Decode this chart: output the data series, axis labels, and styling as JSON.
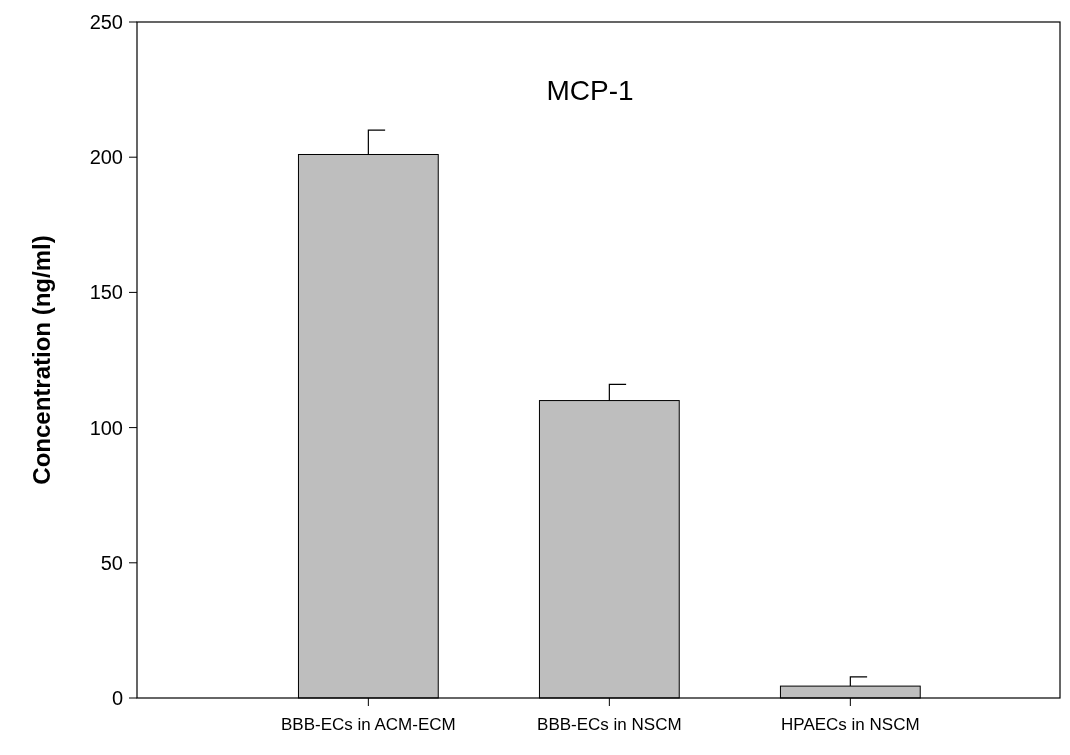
{
  "chart_data": {
    "type": "bar",
    "title": "MCP-1",
    "ylabel": "Concentration (ng/ml)",
    "categories": [
      "BBB-ECs in ACM-ECM",
      "BBB-ECs in NSCM",
      "HPAECs in NSCM"
    ],
    "values": [
      201,
      110,
      4.4
    ],
    "errors": [
      9,
      6,
      3.4
    ],
    "color": "#bebebe",
    "ylim": [
      0,
      250
    ],
    "yticks": [
      0,
      50,
      100,
      150,
      200,
      250
    ],
    "grid": false
  }
}
